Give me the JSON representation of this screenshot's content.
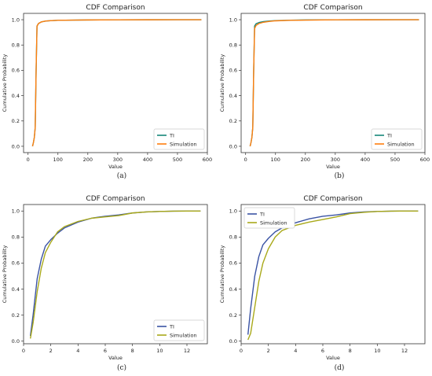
{
  "chart_data": [
    {
      "type": "line",
      "title": "CDF Comparison",
      "xlabel": "Value",
      "ylabel": "Cumulative Probability",
      "caption": "(a)",
      "xlim": [
        -15,
        600
      ],
      "ylim": [
        -0.05,
        1.05
      ],
      "xticks": [
        0,
        100,
        200,
        300,
        400,
        500,
        600
      ],
      "yticks": [
        0.0,
        0.2,
        0.4,
        0.6,
        0.8,
        1.0
      ],
      "legend": "lower-right",
      "series": [
        {
          "name": "TI",
          "color": "#17877a",
          "x": [
            15,
            18,
            21,
            24,
            27,
            30,
            35,
            45,
            60,
            80,
            100,
            150,
            200,
            300,
            400,
            500,
            580
          ],
          "y": [
            0.0,
            0.03,
            0.07,
            0.15,
            0.6,
            0.95,
            0.97,
            0.983,
            0.99,
            0.993,
            0.995,
            0.997,
            0.998,
            0.999,
            0.9995,
            1.0,
            1.0
          ]
        },
        {
          "name": "Simulation",
          "color": "#ff7f0e",
          "x": [
            15,
            18,
            21,
            24,
            27,
            30,
            35,
            45,
            60,
            80,
            100,
            150,
            200,
            300,
            400,
            500,
            580
          ],
          "y": [
            0.0,
            0.03,
            0.07,
            0.15,
            0.6,
            0.95,
            0.97,
            0.983,
            0.99,
            0.993,
            0.995,
            0.997,
            0.998,
            0.999,
            0.9995,
            1.0,
            1.0
          ]
        }
      ]
    },
    {
      "type": "line",
      "title": "CDF Comparison",
      "xlabel": "Value",
      "ylabel": "Cumulative Probability",
      "caption": "(b)",
      "xlim": [
        -15,
        600
      ],
      "ylim": [
        -0.05,
        1.05
      ],
      "xticks": [
        0,
        100,
        200,
        300,
        400,
        500,
        600
      ],
      "yticks": [
        0.0,
        0.2,
        0.4,
        0.6,
        0.8,
        1.0
      ],
      "legend": "lower-right",
      "series": [
        {
          "name": "TI",
          "color": "#17877a",
          "x": [
            15,
            18,
            21,
            24,
            27,
            30,
            35,
            45,
            60,
            80,
            100,
            150,
            200,
            300,
            400,
            500,
            580
          ],
          "y": [
            0.0,
            0.03,
            0.07,
            0.15,
            0.6,
            0.95,
            0.968,
            0.978,
            0.985,
            0.99,
            0.993,
            0.996,
            0.998,
            0.999,
            0.9995,
            1.0,
            1.0
          ]
        },
        {
          "name": "Simulation",
          "color": "#ff7f0e",
          "x": [
            15,
            18,
            21,
            24,
            27,
            30,
            35,
            45,
            60,
            80,
            100,
            150,
            200,
            300,
            400,
            500,
            580
          ],
          "y": [
            0.0,
            0.03,
            0.07,
            0.15,
            0.6,
            0.93,
            0.955,
            0.97,
            0.98,
            0.987,
            0.991,
            0.995,
            0.997,
            0.999,
            0.9995,
            1.0,
            1.0
          ]
        }
      ]
    },
    {
      "type": "line",
      "title": "CDF Comparison",
      "xlabel": "Value",
      "ylabel": "Cumulative Probability",
      "caption": "(c)",
      "xlim": [
        0,
        13.5
      ],
      "ylim": [
        -0.02,
        1.05
      ],
      "xticks": [
        0,
        2,
        4,
        6,
        8,
        10,
        12
      ],
      "yticks": [
        0.0,
        0.2,
        0.4,
        0.6,
        0.8,
        1.0
      ],
      "legend": "lower-right",
      "series": [
        {
          "name": "TI",
          "color": "#3a53a4",
          "x": [
            0.5,
            0.7,
            1.0,
            1.3,
            1.6,
            2.0,
            2.5,
            3.0,
            4.0,
            5.0,
            6.0,
            7.0,
            8.0,
            9.0,
            10.0,
            11.0,
            12.0,
            13.0
          ],
          "y": [
            0.04,
            0.2,
            0.48,
            0.63,
            0.73,
            0.78,
            0.83,
            0.87,
            0.915,
            0.945,
            0.96,
            0.97,
            0.985,
            0.993,
            0.997,
            0.999,
            1.0,
            1.0
          ]
        },
        {
          "name": "Simulation",
          "color": "#a9a91a",
          "x": [
            0.5,
            0.7,
            1.0,
            1.3,
            1.6,
            2.0,
            2.5,
            3.0,
            4.0,
            5.0,
            6.0,
            7.0,
            8.0,
            9.0,
            10.0,
            11.0,
            12.0,
            13.0
          ],
          "y": [
            0.02,
            0.14,
            0.38,
            0.56,
            0.68,
            0.76,
            0.84,
            0.88,
            0.92,
            0.945,
            0.955,
            0.965,
            0.985,
            0.993,
            0.997,
            0.999,
            1.0,
            1.0
          ]
        }
      ]
    },
    {
      "type": "line",
      "title": "CDF Comparison",
      "xlabel": "Value",
      "ylabel": "Cumulative Probability",
      "caption": "(d)",
      "xlim": [
        0,
        13.5
      ],
      "ylim": [
        -0.02,
        1.05
      ],
      "xticks": [
        0,
        2,
        4,
        6,
        8,
        10,
        12
      ],
      "yticks": [
        0.0,
        0.2,
        0.4,
        0.6,
        0.8,
        1.0
      ],
      "legend": "upper-left",
      "series": [
        {
          "name": "TI",
          "color": "#3a53a4",
          "x": [
            0.5,
            0.7,
            1.0,
            1.3,
            1.6,
            2.0,
            2.5,
            3.0,
            4.0,
            5.0,
            6.0,
            7.0,
            8.0,
            9.0,
            10.0,
            11.0,
            12.0,
            13.0
          ],
          "y": [
            0.05,
            0.25,
            0.5,
            0.65,
            0.74,
            0.79,
            0.84,
            0.87,
            0.91,
            0.94,
            0.96,
            0.97,
            0.985,
            0.993,
            0.997,
            0.999,
            1.0,
            1.0
          ]
        },
        {
          "name": "Simulation",
          "color": "#a9a91a",
          "x": [
            0.5,
            0.7,
            1.0,
            1.3,
            1.6,
            2.0,
            2.5,
            3.0,
            4.0,
            5.0,
            6.0,
            7.0,
            8.0,
            9.0,
            10.0,
            11.0,
            12.0,
            13.0
          ],
          "y": [
            0.01,
            0.06,
            0.26,
            0.46,
            0.6,
            0.71,
            0.8,
            0.85,
            0.89,
            0.915,
            0.935,
            0.955,
            0.98,
            0.99,
            0.997,
            0.999,
            1.0,
            1.0
          ]
        }
      ]
    }
  ]
}
